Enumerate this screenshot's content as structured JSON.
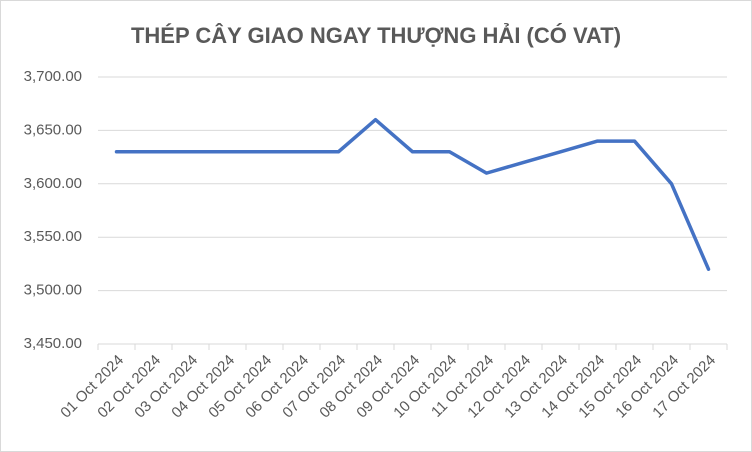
{
  "chart_data": {
    "type": "line",
    "title": "THÉP CÂY GIAO NGAY THƯỢNG HẢI (CÓ VAT)",
    "categories": [
      "01 Oct 2024",
      "02 Oct 2024",
      "03 Oct 2024",
      "04 Oct 2024",
      "05 Oct 2024",
      "06 Oct 2024",
      "07 Oct 2024",
      "08 Oct 2024",
      "09 Oct 2024",
      "10 Oct 2024",
      "11 Oct 2024",
      "12 Oct 2024",
      "13 Oct 2024",
      "14 Oct 2024",
      "15 Oct 2024",
      "16 Oct 2024",
      "17 Oct 2024"
    ],
    "values": [
      3630,
      3630,
      3630,
      3630,
      3630,
      3630,
      3630,
      3660,
      3630,
      3630,
      3610,
      3620,
      3630,
      3640,
      3640,
      3600,
      3520
    ],
    "color": "#4472c4",
    "ylim": [
      3450,
      3700
    ],
    "yticks": [
      {
        "value": 3450,
        "label": "3,450.00"
      },
      {
        "value": 3500,
        "label": "3,500.00"
      },
      {
        "value": 3550,
        "label": "3,550.00"
      },
      {
        "value": 3600,
        "label": "3,600.00"
      },
      {
        "value": 3650,
        "label": "3,650.00"
      },
      {
        "value": 3700,
        "label": "3,700.00"
      }
    ],
    "grid": true
  }
}
